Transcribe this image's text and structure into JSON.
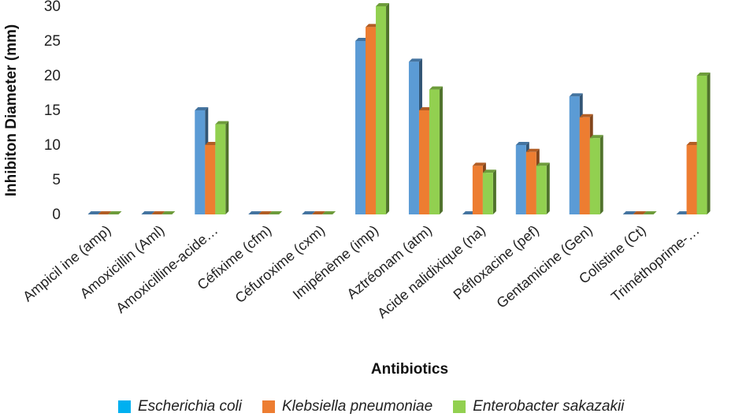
{
  "chart_data": {
    "type": "bar",
    "xlabel": "Antibiotics",
    "ylabel": "Inhibiton Diameter (mm)",
    "ylim": [
      0,
      30
    ],
    "yticks": [
      0,
      5,
      10,
      15,
      20,
      25,
      30
    ],
    "grid": false,
    "legend_position": "bottom",
    "categories": [
      "Ampicil ine (amp)",
      "Amoxicillin (Aml)",
      "Amoxicilline-acide…",
      "Céfixime (cfm)",
      "Céfuroxime (cxm)",
      "Imipénème (imp)",
      "Aztréonam (atm)",
      "Acide nalidixique (na)",
      "Péfloxacine (pef)",
      "Gentamicine (Gen)",
      "Colistine (Ct)",
      "Triméthoprime-…"
    ],
    "series": [
      {
        "name": "Escherichia coli",
        "color": "#5b9bd5",
        "legend_color": "#00b0f0",
        "values": [
          0,
          0,
          15,
          0,
          0,
          25,
          22,
          0,
          10,
          17,
          0,
          0
        ]
      },
      {
        "name": "Klebsiella pneumoniae",
        "color": "#ed7d31",
        "legend_color": "#ed7d31",
        "values": [
          0,
          0,
          10,
          0,
          0,
          27,
          15,
          7,
          9,
          14,
          0,
          10
        ]
      },
      {
        "name": "Enterobacter sakazakii",
        "color": "#92d050",
        "legend_color": "#92d050",
        "values": [
          0,
          0,
          13,
          0,
          0,
          30,
          18,
          6,
          7,
          11,
          0,
          20
        ]
      }
    ]
  }
}
